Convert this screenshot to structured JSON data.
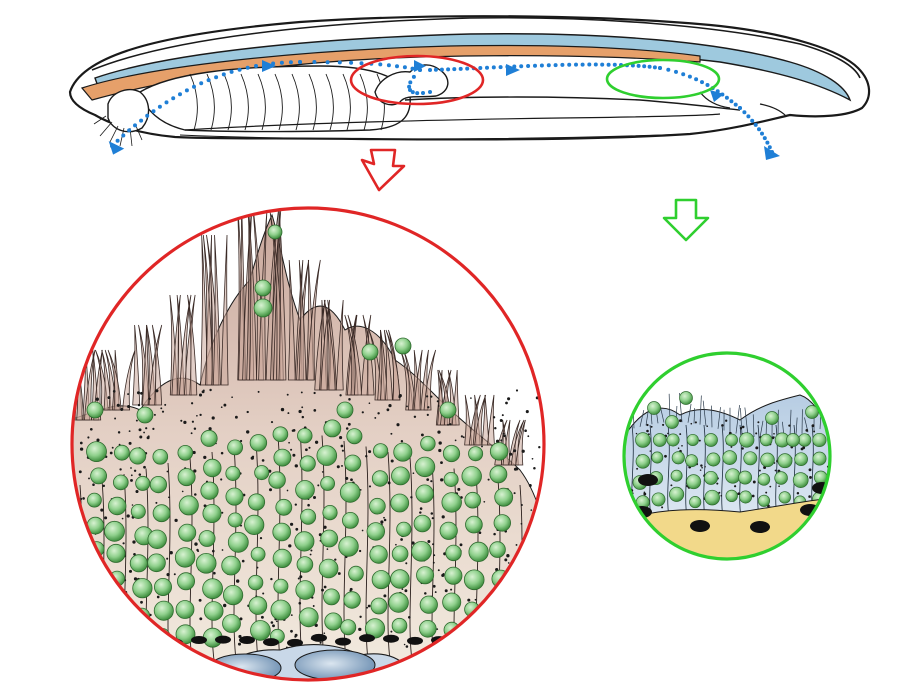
{
  "figure": {
    "labels": [],
    "colors": {
      "body_outline": "#1a1a1a",
      "notochord_blue": "#9ec9de",
      "nerve_cord_orange": "#e6a06a",
      "flow_arrow_blue": "#1f7fd6",
      "red_highlight": "#e02626",
      "green_highlight": "#2fcf2f",
      "granule_green": "#8fd08c",
      "granule_green_dark": "#3f8f3f",
      "cell_pink": "#d9bdb0",
      "cell_tan": "#efe2d2",
      "cell_blue": "#c9d8e8",
      "basal_yellow": "#f2d98a",
      "nucleus_black": "#111111",
      "basal_nucleus_blue": "#6d8fb2"
    },
    "regions": [
      {
        "id": "anterior-region",
        "highlight": "red",
        "zoom": "large-epithelium-detail"
      },
      {
        "id": "posterior-region",
        "highlight": "green",
        "zoom": "small-epithelium-detail"
      }
    ],
    "icons": [
      "down-arrow-icon",
      "flow-arrowhead-icon"
    ]
  }
}
